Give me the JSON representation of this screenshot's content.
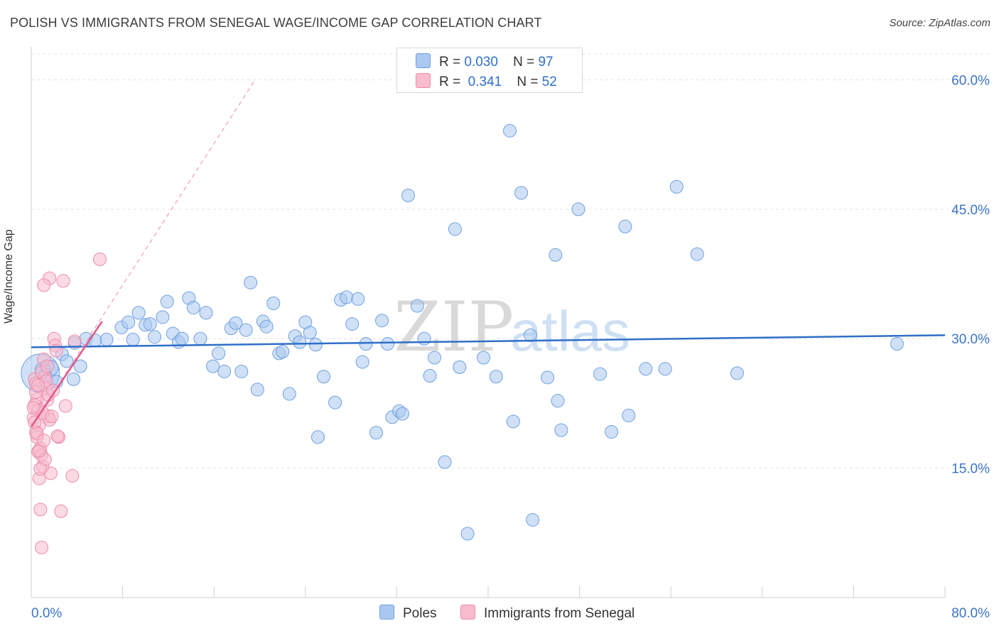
{
  "header": {
    "title": "POLISH VS IMMIGRANTS FROM SENEGAL WAGE/INCOME GAP CORRELATION CHART",
    "source": "Source: ZipAtlas.com"
  },
  "legend": {
    "r_label": "R =",
    "n_label": "N =",
    "items": [
      {
        "r": "0.030",
        "n": "97",
        "color": "#aac8f0",
        "border": "#6f9fe0"
      },
      {
        "r": "0.341",
        "n": "52",
        "color": "#f8bccd",
        "border": "#ee8aa8"
      }
    ]
  },
  "watermark": {
    "zip": "ZIP",
    "atlas": "atlas"
  },
  "chart_data": {
    "type": "scatter",
    "ylabel": "Wage/Income Gap",
    "xlim": [
      0,
      80
    ],
    "ylim": [
      0,
      63
    ],
    "x_tick_labels": [
      "0.0%",
      "80.0%"
    ],
    "y_ticks": [
      15,
      30,
      45,
      60
    ],
    "y_tick_labels": [
      "15.0%",
      "30.0%",
      "45.0%",
      "60.0%"
    ],
    "grid": "horizontal-dashed",
    "legend_position": "top-center",
    "series": [
      {
        "name": "Poles",
        "color": "#aac8f0",
        "border": "#6f9fe0",
        "line_color": "#2f6fc9",
        "trend": {
          "x": [
            0,
            80
          ],
          "y": [
            29.0,
            30.4
          ]
        },
        "points": [
          [
            0.8,
            26.0,
            3.0
          ],
          [
            1.7,
            26.6,
            1.2
          ],
          [
            3.7,
            25.3,
            1.0
          ],
          [
            2.7,
            28.2,
            1.0
          ],
          [
            3.8,
            29.5,
            1.0
          ],
          [
            4.3,
            26.8,
            1.0
          ],
          [
            4.8,
            30.0,
            1.0
          ],
          [
            5.6,
            29.8,
            1.0
          ],
          [
            6.6,
            29.9,
            1.0
          ],
          [
            7.9,
            31.3,
            1.0
          ],
          [
            8.5,
            31.9,
            1.0
          ],
          [
            8.9,
            29.9,
            1.0
          ],
          [
            9.4,
            33.0,
            1.0
          ],
          [
            10.0,
            31.6,
            1.0
          ],
          [
            10.4,
            31.7,
            1.0
          ],
          [
            10.8,
            30.2,
            1.0
          ],
          [
            11.5,
            32.5,
            1.0
          ],
          [
            11.9,
            34.3,
            1.0
          ],
          [
            12.4,
            30.6,
            1.0
          ],
          [
            12.9,
            29.6,
            1.0
          ],
          [
            13.2,
            30.0,
            1.0
          ],
          [
            13.8,
            34.7,
            1.0
          ],
          [
            14.2,
            33.6,
            1.0
          ],
          [
            14.8,
            30.0,
            1.0
          ],
          [
            15.3,
            33.0,
            1.0
          ],
          [
            15.9,
            26.8,
            1.0
          ],
          [
            16.4,
            28.3,
            1.0
          ],
          [
            16.9,
            26.2,
            1.0
          ],
          [
            17.5,
            31.2,
            1.0
          ],
          [
            17.9,
            31.8,
            1.0
          ],
          [
            18.4,
            26.2,
            1.0
          ],
          [
            18.8,
            31.0,
            1.0
          ],
          [
            19.2,
            36.5,
            1.0
          ],
          [
            19.8,
            24.1,
            1.0
          ],
          [
            20.3,
            32.0,
            1.0
          ],
          [
            20.6,
            31.4,
            1.0
          ],
          [
            21.2,
            34.1,
            1.0
          ],
          [
            21.7,
            28.3,
            1.0
          ],
          [
            22.0,
            28.5,
            1.0
          ],
          [
            22.6,
            23.6,
            1.0
          ],
          [
            23.1,
            30.3,
            1.0
          ],
          [
            23.5,
            29.6,
            1.0
          ],
          [
            24.0,
            31.9,
            1.0
          ],
          [
            24.4,
            30.7,
            1.0
          ],
          [
            24.9,
            29.3,
            1.0
          ],
          [
            25.6,
            25.6,
            1.0
          ],
          [
            25.1,
            18.6,
            1.0
          ],
          [
            26.6,
            22.6,
            1.0
          ],
          [
            27.1,
            34.5,
            1.0
          ],
          [
            27.6,
            34.8,
            1.0
          ],
          [
            28.1,
            31.7,
            1.0
          ],
          [
            28.6,
            34.6,
            1.0
          ],
          [
            29.0,
            27.3,
            1.0
          ],
          [
            29.3,
            29.4,
            1.0
          ],
          [
            30.2,
            19.1,
            1.0
          ],
          [
            30.7,
            32.1,
            1.0
          ],
          [
            31.2,
            29.4,
            1.0
          ],
          [
            31.6,
            20.9,
            1.0
          ],
          [
            32.2,
            21.6,
            1.0
          ],
          [
            32.5,
            21.3,
            1.0
          ],
          [
            33.0,
            46.6,
            1.0
          ],
          [
            33.8,
            33.8,
            1.0
          ],
          [
            34.4,
            30.0,
            1.0
          ],
          [
            34.9,
            25.7,
            1.0
          ],
          [
            35.3,
            27.8,
            1.0
          ],
          [
            36.2,
            15.7,
            1.0
          ],
          [
            37.1,
            42.7,
            1.0
          ],
          [
            37.5,
            26.7,
            1.0
          ],
          [
            38.2,
            7.4,
            1.0
          ],
          [
            39.6,
            27.8,
            1.0
          ],
          [
            40.7,
            25.6,
            1.0
          ],
          [
            41.9,
            54.1,
            1.0
          ],
          [
            42.2,
            20.4,
            1.0
          ],
          [
            42.9,
            46.9,
            1.0
          ],
          [
            43.7,
            30.4,
            1.0
          ],
          [
            43.9,
            9.0,
            1.0
          ],
          [
            45.2,
            25.5,
            1.0
          ],
          [
            45.9,
            39.7,
            1.0
          ],
          [
            46.1,
            22.8,
            1.0
          ],
          [
            46.4,
            19.4,
            1.0
          ],
          [
            47.9,
            45.0,
            1.0
          ],
          [
            49.8,
            25.9,
            1.0
          ],
          [
            50.8,
            19.2,
            1.0
          ],
          [
            52.0,
            43.0,
            1.0
          ],
          [
            52.3,
            21.1,
            1.0
          ],
          [
            53.8,
            26.5,
            1.0
          ],
          [
            55.5,
            26.5,
            1.0
          ],
          [
            56.5,
            47.6,
            1.0
          ],
          [
            58.3,
            39.8,
            1.0
          ],
          [
            61.8,
            26.0,
            1.0
          ],
          [
            75.8,
            29.4,
            1.0
          ],
          [
            1.2,
            25.8,
            1.0
          ],
          [
            2.2,
            25.0,
            1.0
          ],
          [
            3.1,
            27.4,
            1.0
          ],
          [
            1.0,
            26.4,
            1.2
          ]
        ]
      },
      {
        "name": "Immigrants from Senegal",
        "color": "#f8bccd",
        "border": "#ee8aa8",
        "line_color": "#e05a8a",
        "trend": {
          "x": [
            0,
            6.2
          ],
          "y": [
            19.8,
            32.0
          ]
        },
        "trend_extended": {
          "x": [
            0,
            19.6
          ],
          "y": [
            19.8,
            60.0
          ]
        },
        "points": [
          [
            0.3,
            25.3,
            1.0
          ],
          [
            0.4,
            24.8,
            1.0
          ],
          [
            0.5,
            23.0,
            1.0
          ],
          [
            0.3,
            22.3,
            1.0
          ],
          [
            0.6,
            21.7,
            1.0
          ],
          [
            0.2,
            20.8,
            1.0
          ],
          [
            0.7,
            20.0,
            1.0
          ],
          [
            0.4,
            19.2,
            1.0
          ],
          [
            0.5,
            18.6,
            1.0
          ],
          [
            0.8,
            17.3,
            1.0
          ],
          [
            0.6,
            16.9,
            1.0
          ],
          [
            0.9,
            16.5,
            1.0
          ],
          [
            1.0,
            15.2,
            1.0
          ],
          [
            0.7,
            13.8,
            1.0
          ],
          [
            0.8,
            10.2,
            1.0
          ],
          [
            0.9,
            5.8,
            1.0
          ],
          [
            1.1,
            27.6,
            1.0
          ],
          [
            1.2,
            25.6,
            1.0
          ],
          [
            1.3,
            24.2,
            1.0
          ],
          [
            1.4,
            22.9,
            1.0
          ],
          [
            1.5,
            21.0,
            1.0
          ],
          [
            1.6,
            20.6,
            1.0
          ],
          [
            1.2,
            16.0,
            1.0
          ],
          [
            1.7,
            14.4,
            1.0
          ],
          [
            1.6,
            37.0,
            1.0
          ],
          [
            1.1,
            36.2,
            1.0
          ],
          [
            2.0,
            30.0,
            1.0
          ],
          [
            2.1,
            29.2,
            1.0
          ],
          [
            2.2,
            28.6,
            1.0
          ],
          [
            2.4,
            18.6,
            1.0
          ],
          [
            2.6,
            10.0,
            1.0
          ],
          [
            2.8,
            36.7,
            1.0
          ],
          [
            3.0,
            22.2,
            1.0
          ],
          [
            3.6,
            14.1,
            1.0
          ],
          [
            3.8,
            29.7,
            1.0
          ],
          [
            6.0,
            39.2,
            1.0
          ],
          [
            0.9,
            26.1,
            1.0
          ],
          [
            1.3,
            25.1,
            1.0
          ],
          [
            0.4,
            23.8,
            1.0
          ],
          [
            0.6,
            24.6,
            1.0
          ],
          [
            1.0,
            21.4,
            1.0
          ],
          [
            0.3,
            20.3,
            1.0
          ],
          [
            0.5,
            19.0,
            1.0
          ],
          [
            0.7,
            17.0,
            1.0
          ],
          [
            1.8,
            21.0,
            1.0
          ],
          [
            2.3,
            18.7,
            1.0
          ],
          [
            1.5,
            23.5,
            1.0
          ],
          [
            1.9,
            24.0,
            1.0
          ],
          [
            0.2,
            22.0,
            1.0
          ],
          [
            1.1,
            18.2,
            1.0
          ],
          [
            0.8,
            14.9,
            1.0
          ],
          [
            1.4,
            26.8,
            1.0
          ]
        ]
      }
    ]
  }
}
